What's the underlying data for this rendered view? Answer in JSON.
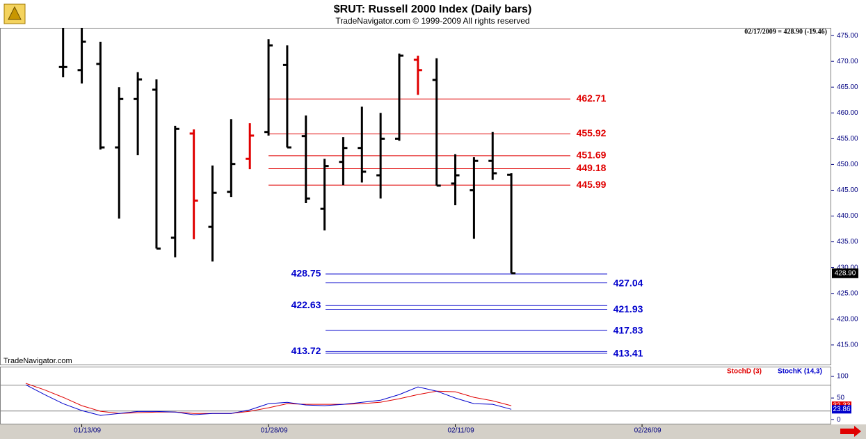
{
  "chart_data": {
    "type": "ohlc",
    "title": "$RUT:  Russell 2000 Index  (Daily bars)",
    "subtitle": "TradeNavigator.com © 1999-2009 All rights reserved",
    "info": "02/17/2009 = 428.90 (-19.46)",
    "watermark": "TradeNavigator.com",
    "categories": [
      null,
      null,
      null,
      "01/13/09",
      null,
      null,
      null,
      null,
      null,
      null,
      null,
      null,
      null,
      "01/28/09",
      null,
      null,
      null,
      null,
      null,
      null,
      null,
      null,
      null,
      "02/11/09",
      null,
      null,
      null,
      null,
      null,
      null,
      null,
      null,
      null,
      "02/26/09"
    ],
    "open": [
      null,
      null,
      468.9,
      468.3,
      469.5,
      453.3,
      462.7,
      464.5,
      435.8,
      456.0,
      437.9,
      444.7,
      451.1,
      456.3,
      469.3,
      455.5,
      441.4,
      450.5,
      453.2,
      447.9,
      455.0,
      470.3,
      466.4,
      446.3,
      445.0,
      450.7,
      448.0,
      null,
      null,
      null,
      null,
      null,
      null,
      null
    ],
    "high": [
      null,
      null,
      476.5,
      476.5,
      473.8,
      465.0,
      467.9,
      466.5,
      457.5,
      456.8,
      449.8,
      458.8,
      458.0,
      474.3,
      473.1,
      459.5,
      451.1,
      455.3,
      461.2,
      460.0,
      471.5,
      471.1,
      470.6,
      452.0,
      451.4,
      456.3,
      448.3,
      null,
      null,
      null,
      null,
      null,
      null,
      null
    ],
    "low": [
      null,
      null,
      466.9,
      465.7,
      452.9,
      439.5,
      451.8,
      433.7,
      432.0,
      435.5,
      431.2,
      443.7,
      449.1,
      455.6,
      453.3,
      442.5,
      437.2,
      446.0,
      446.5,
      443.4,
      454.6,
      463.5,
      445.9,
      442.1,
      435.6,
      447.0,
      428.9,
      null,
      null,
      null,
      null,
      null,
      null,
      null
    ],
    "close": [
      null,
      null,
      468.9,
      473.8,
      453.3,
      462.7,
      466.5,
      433.7,
      456.9,
      443.0,
      444.5,
      450.1,
      455.6,
      473.1,
      453.3,
      443.4,
      449.7,
      453.2,
      448.6,
      455.0,
      471.1,
      468.3,
      445.9,
      447.9,
      450.7,
      448.3,
      428.9,
      null,
      null,
      null,
      null,
      null,
      null,
      null
    ],
    "colors": [
      null,
      null,
      "#000000",
      "#000000",
      "#000000",
      "#000000",
      "#000000",
      "#000000",
      "#000000",
      "#e00000",
      "#000000",
      "#000000",
      "#e00000",
      "#000000",
      "#000000",
      "#000000",
      "#000000",
      "#000000",
      "#000000",
      "#000000",
      "#000000",
      "#e00000",
      "#000000",
      "#000000",
      "#000000",
      "#000000",
      "#000000",
      null,
      null,
      null,
      null,
      null,
      null,
      null
    ],
    "ylim": [
      411.2,
      476.5
    ],
    "yticks": [
      {
        "value": 415,
        "label": "415.00"
      },
      {
        "value": 420,
        "label": "420.00"
      },
      {
        "value": 425,
        "label": "425.00"
      },
      {
        "value": 430,
        "label": "430.00"
      },
      {
        "value": 435,
        "label": "435.00"
      },
      {
        "value": 440,
        "label": "440.00"
      },
      {
        "value": 445,
        "label": "445.00"
      },
      {
        "value": 450,
        "label": "450.00"
      },
      {
        "value": 455,
        "label": "455.00"
      },
      {
        "value": 460,
        "label": "460.00"
      },
      {
        "value": 465,
        "label": "465.00"
      },
      {
        "value": 470,
        "label": "470.00"
      },
      {
        "value": 475,
        "label": "475.00"
      }
    ],
    "last_price": {
      "value": 428.9,
      "label": "428.90"
    },
    "red_levels": [
      462.71,
      455.92,
      451.69,
      449.18,
      445.99
    ],
    "red_level_color": "#e00000",
    "blue_levels_left": [
      428.75,
      422.63,
      413.72
    ],
    "blue_levels_right": [
      427.04,
      421.93,
      417.83,
      413.41
    ],
    "blue_level_color": "#0000cc",
    "stoch": {
      "type": "line",
      "ylim": [
        -11,
        121
      ],
      "yticks": [
        0,
        50,
        100
      ],
      "levels": [
        20,
        80
      ],
      "series": [
        {
          "name": "StochD (3)",
          "color": "#e00000",
          "last_label": "32.33",
          "values": [
            83.9,
            69,
            51.6,
            32.3,
            19.4,
            14.5,
            16.1,
            17.7,
            17.7,
            14.5,
            14.5,
            14.5,
            19.4,
            27.4,
            37,
            35.5,
            35.5,
            35.5,
            37,
            40.3,
            48.4,
            58,
            66,
            64.5,
            51.6,
            43.5,
            32.33,
            null,
            null,
            null,
            null,
            null,
            null,
            null
          ]
        },
        {
          "name": "StochK (14,3)",
          "color": "#0000cc",
          "last_label": "23.86",
          "values": [
            80.6,
            58,
            37,
            21,
            9.7,
            14.5,
            19,
            19,
            17.7,
            11.3,
            14.5,
            14.5,
            22.6,
            37,
            40,
            33.9,
            32.3,
            35.5,
            40,
            45,
            58,
            75.8,
            66,
            50,
            37,
            35.5,
            23.86,
            null,
            null,
            null,
            null,
            null,
            null,
            null
          ]
        }
      ]
    }
  }
}
